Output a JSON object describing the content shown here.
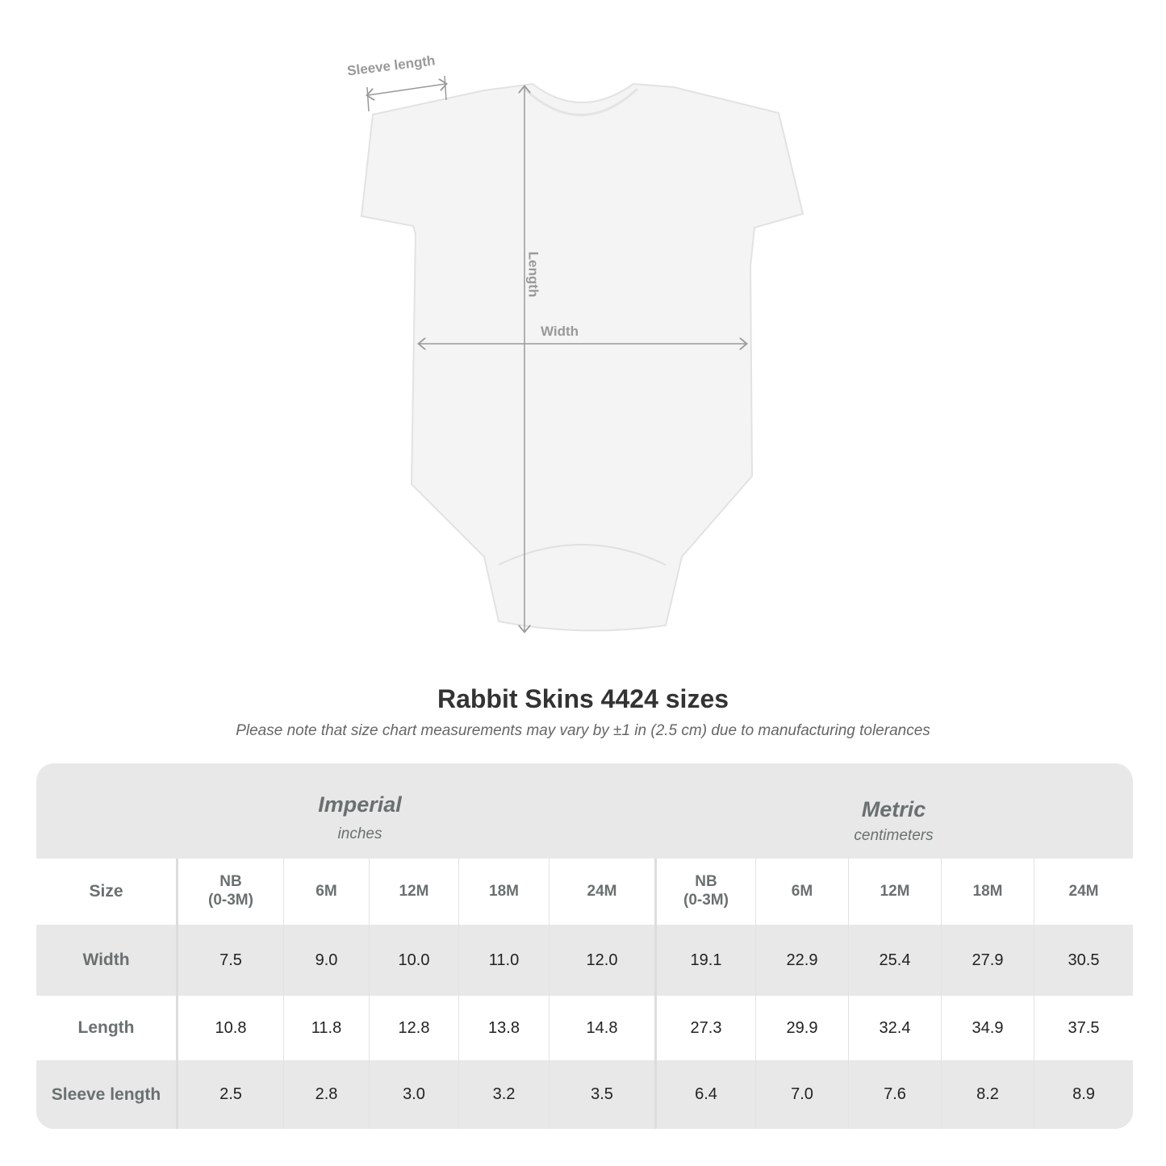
{
  "diagram": {
    "sleeve_label": "Sleeve length",
    "length_label": "Length",
    "width_label": "Width"
  },
  "title": "Rabbit Skins 4424 sizes",
  "note": "Please note that size chart measurements may vary by ±1 in (2.5 cm) due to manufacturing tolerances",
  "table": {
    "imperial": {
      "label": "Imperial",
      "unit": "inches"
    },
    "metric": {
      "label": "Metric",
      "unit": "centimeters"
    },
    "size_label": "Size",
    "sizes": [
      "NB\n(0-3M)",
      "6M",
      "12M",
      "18M",
      "24M",
      "NB\n(0-3M)",
      "6M",
      "12M",
      "18M",
      "24M"
    ],
    "rows": [
      {
        "label": "Width",
        "values": [
          "7.5",
          "9.0",
          "10.0",
          "11.0",
          "12.0",
          "19.1",
          "22.9",
          "25.4",
          "27.9",
          "30.5"
        ]
      },
      {
        "label": "Length",
        "values": [
          "10.8",
          "11.8",
          "12.8",
          "13.8",
          "14.8",
          "27.3",
          "29.9",
          "32.4",
          "34.9",
          "37.5"
        ]
      },
      {
        "label": "Sleeve length",
        "values": [
          "2.5",
          "2.8",
          "3.0",
          "3.2",
          "3.5",
          "6.4",
          "7.0",
          "7.6",
          "8.2",
          "8.9"
        ]
      }
    ]
  }
}
